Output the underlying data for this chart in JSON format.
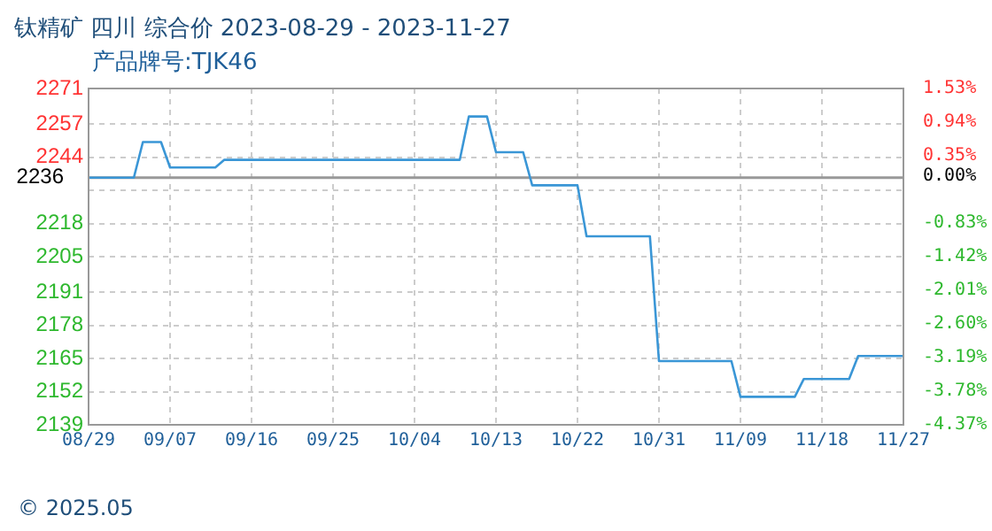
{
  "chart_data": {
    "type": "line",
    "title": "钛精矿 四川 综合价 2023-08-29 - 2023-11-27",
    "subtitle": "产品牌号:TJK46",
    "x": [
      "2023-08-29",
      "2023-09-03",
      "2023-09-04",
      "2023-09-06",
      "2023-09-07",
      "2023-09-12",
      "2023-09-13",
      "2023-10-09",
      "2023-10-10",
      "2023-10-12",
      "2023-10-13",
      "2023-10-16",
      "2023-10-17",
      "2023-10-22",
      "2023-10-23",
      "2023-10-30",
      "2023-10-31",
      "2023-11-08",
      "2023-11-09",
      "2023-11-15",
      "2023-11-16",
      "2023-11-21",
      "2023-11-22",
      "2023-11-27"
    ],
    "series": [
      {
        "color": "#3a96d6",
        "values": [
          2236,
          2236,
          2250,
          2250,
          2240,
          2240,
          2243,
          2243,
          2260,
          2260,
          2246,
          2246,
          2233,
          2233,
          2213,
          2213,
          2164,
          2164,
          2150,
          2150,
          2157,
          2157,
          2166,
          2166
        ]
      }
    ],
    "xlim": [
      "2023-08-29",
      "2023-11-27"
    ],
    "xticks": [
      {
        "value": "2023-08-29",
        "label": "08/29"
      },
      {
        "value": "2023-09-07",
        "label": "09/07"
      },
      {
        "value": "2023-09-16",
        "label": "09/16"
      },
      {
        "value": "2023-09-25",
        "label": "09/25"
      },
      {
        "value": "2023-10-04",
        "label": "10/04"
      },
      {
        "value": "2023-10-13",
        "label": "10/13"
      },
      {
        "value": "2023-10-22",
        "label": "10/22"
      },
      {
        "value": "2023-10-31",
        "label": "10/31"
      },
      {
        "value": "2023-11-09",
        "label": "11/09"
      },
      {
        "value": "2023-11-18",
        "label": "11/18"
      },
      {
        "value": "2023-11-27",
        "label": "11/27"
      }
    ],
    "ylim": [
      2139,
      2271
    ],
    "yticks": [
      2271,
      2257,
      2244,
      {
        "value": 2231,
        "label": null
      },
      2218,
      2205,
      2191,
      2178,
      2165,
      2152,
      2139
    ],
    "y2lim": [
      -4.37,
      1.53
    ],
    "y2ticks": [
      {
        "value": 1.53,
        "label": "1.53%"
      },
      {
        "value": 0.94,
        "label": "0.94%"
      },
      {
        "value": 0.35,
        "label": "0.35%"
      },
      {
        "value": 0,
        "label": "0.00%"
      },
      {
        "value": -0.83,
        "label": "-0.83%"
      },
      {
        "value": -1.42,
        "label": "-1.42%"
      },
      {
        "value": -2.01,
        "label": "-2.01%"
      },
      {
        "value": -2.6,
        "label": "-2.60%"
      },
      {
        "value": -3.19,
        "label": "-3.19%"
      },
      {
        "value": -3.78,
        "label": "-3.78%"
      },
      {
        "value": -4.37,
        "label": "-4.37%"
      }
    ],
    "ref_lines": [
      {
        "axis": "y",
        "value": 2236,
        "label": "2236",
        "color": "#999999"
      }
    ],
    "annotations": [
      "© 2025.05"
    ],
    "grid": true,
    "legend": false,
    "marker": "none",
    "line_style": "solid"
  }
}
